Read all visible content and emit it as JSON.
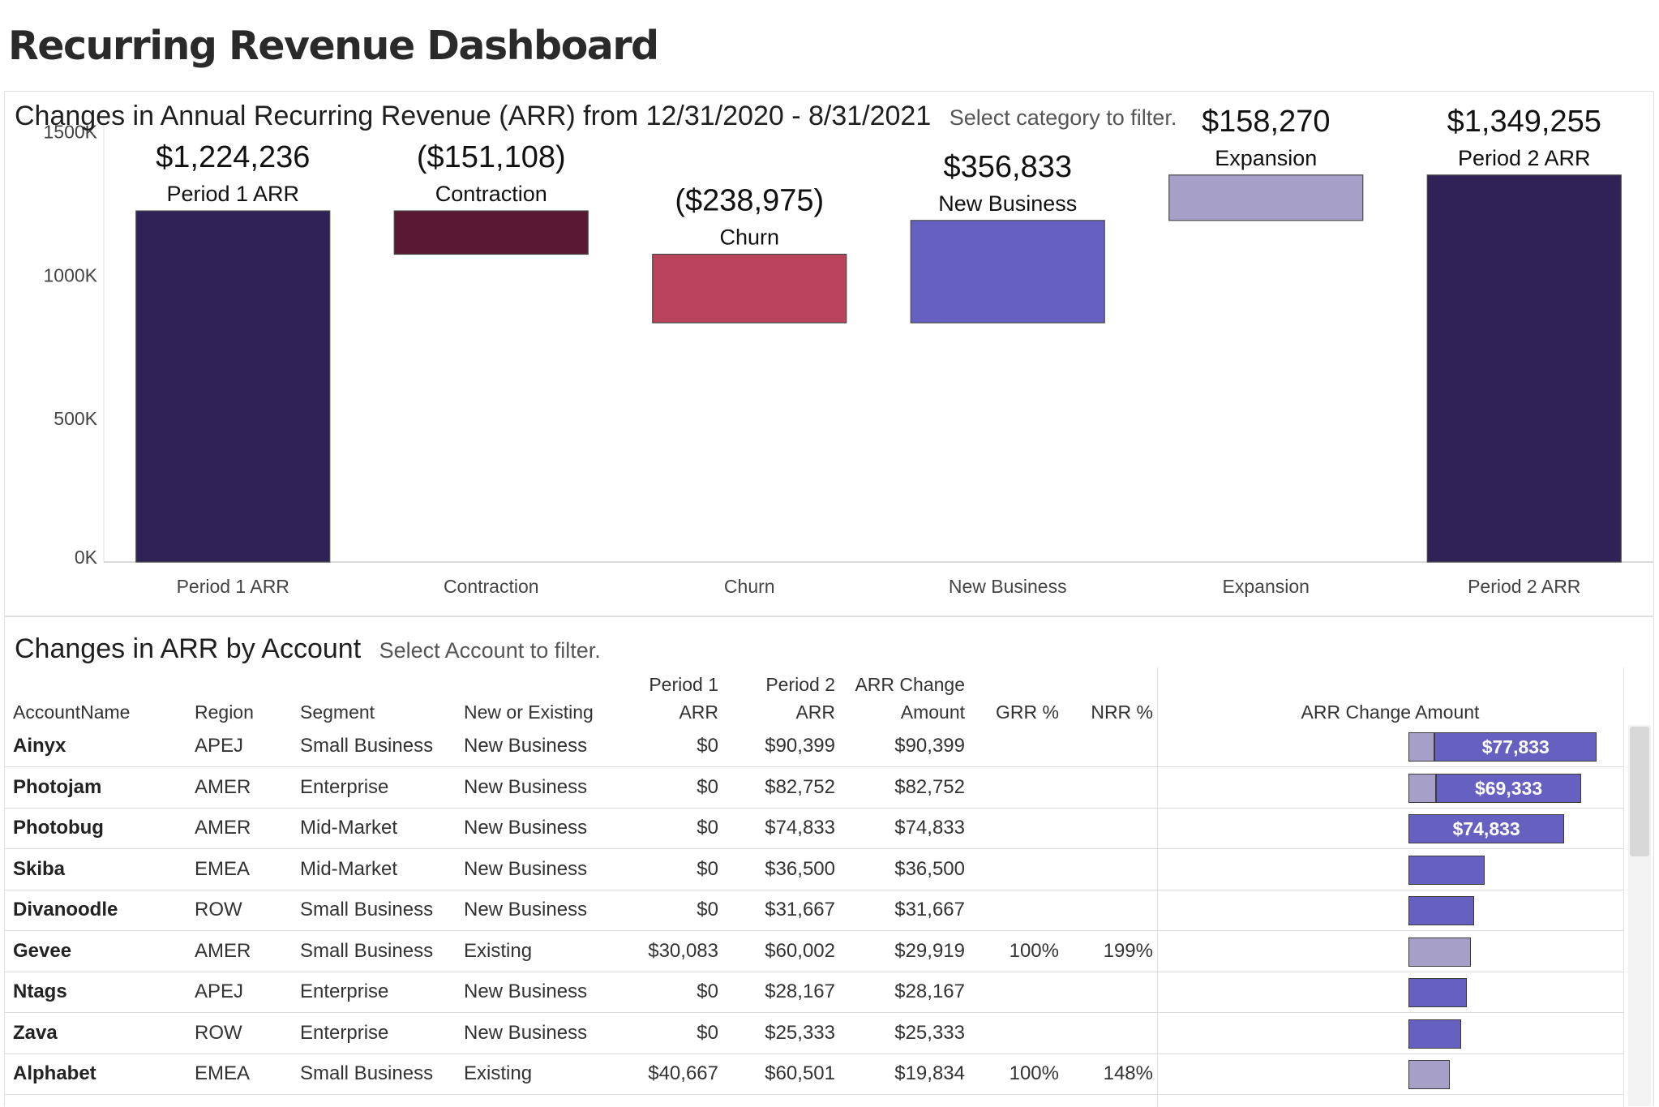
{
  "dashboard": {
    "title": "Recurring Revenue Dashboard"
  },
  "waterfall": {
    "title": "Changes in Annual Recurring Revenue (ARR) from 12/31/2020 - 8/31/2021",
    "hint": "Select category to filter."
  },
  "chart_data": {
    "type": "bar",
    "subtype": "waterfall",
    "categories": [
      "Period 1 ARR",
      "Contraction",
      "Churn",
      "New Business",
      "Expansion",
      "Period 2 ARR"
    ],
    "values": [
      1224236,
      -151108,
      -238975,
      356833,
      158270,
      1349255
    ],
    "value_labels": [
      "$1,224,236",
      "($151,108)",
      "($238,975)",
      "$356,833",
      "$158,270",
      "$1,349,255"
    ],
    "bar_start": [
      0,
      1224236,
      1073128,
      834153,
      1190986,
      0
    ],
    "bar_end": [
      1224236,
      1073128,
      834153,
      1190986,
      1349256,
      1349255
    ],
    "colors": [
      "#2e2257",
      "#5a1832",
      "#b8435b",
      "#6660c0",
      "#a69fc7",
      "#2e2257"
    ],
    "ytick_labels": [
      "1500K",
      "1000K",
      "500K",
      "0K"
    ],
    "yticks": [
      1500000,
      1000000,
      500000,
      0
    ],
    "ylim": [
      0,
      1640000
    ],
    "title": "Changes in Annual Recurring Revenue (ARR) from 12/31/2020 - 8/31/2021",
    "xlabel": "",
    "ylabel": "",
    "grid": false,
    "legend": "none"
  },
  "accounts": {
    "title": "Changes in ARR by Account",
    "hint": "Select Account to filter.",
    "headers": {
      "name": "AccountName",
      "region": "Region",
      "segment": "Segment",
      "new_existing": "New or Existing",
      "p1_line1": "Period 1",
      "p1_line2": "ARR",
      "p2_line1": "Period 2",
      "p2_line2": "ARR",
      "chg_line1": "ARR Change",
      "chg_line2": "Amount",
      "grr": "GRR %",
      "nrr": "NRR %",
      "bar": "ARR Change Amount"
    },
    "bar_colors": {
      "new": "#6660c0",
      "existing": "#a69fc7",
      "border": "#3a3a3a"
    },
    "rows": [
      {
        "name": "Ainyx",
        "region": "APEJ",
        "segment": "Small Business",
        "type": "New Business",
        "p1": "$0",
        "p2": "$90,399",
        "chg": "$90,399",
        "grr": "",
        "nrr": "",
        "grey_val": 12566,
        "blue_val": 77833,
        "bar_label": "$77,833"
      },
      {
        "name": "Photojam",
        "region": "AMER",
        "segment": "Enterprise",
        "type": "New Business",
        "p1": "$0",
        "p2": "$82,752",
        "chg": "$82,752",
        "grr": "",
        "nrr": "",
        "grey_val": 13419,
        "blue_val": 69333,
        "bar_label": "$69,333"
      },
      {
        "name": "Photobug",
        "region": "AMER",
        "segment": "Mid-Market",
        "type": "New Business",
        "p1": "$0",
        "p2": "$74,833",
        "chg": "$74,833",
        "grr": "",
        "nrr": "",
        "grey_val": 0,
        "blue_val": 74833,
        "bar_label": "$74,833"
      },
      {
        "name": "Skiba",
        "region": "EMEA",
        "segment": "Mid-Market",
        "type": "New Business",
        "p1": "$0",
        "p2": "$36,500",
        "chg": "$36,500",
        "grr": "",
        "nrr": "",
        "grey_val": 0,
        "blue_val": 36500,
        "bar_label": ""
      },
      {
        "name": "Divanoodle",
        "region": "ROW",
        "segment": "Small Business",
        "type": "New Business",
        "p1": "$0",
        "p2": "$31,667",
        "chg": "$31,667",
        "grr": "",
        "nrr": "",
        "grey_val": 0,
        "blue_val": 31667,
        "bar_label": ""
      },
      {
        "name": "Gevee",
        "region": "AMER",
        "segment": "Small Business",
        "type": "Existing",
        "p1": "$30,083",
        "p2": "$60,002",
        "chg": "$29,919",
        "grr": "100%",
        "nrr": "199%",
        "grey_val": 29919,
        "blue_val": 0,
        "bar_label": ""
      },
      {
        "name": "Ntags",
        "region": "APEJ",
        "segment": "Enterprise",
        "type": "New Business",
        "p1": "$0",
        "p2": "$28,167",
        "chg": "$28,167",
        "grr": "",
        "nrr": "",
        "grey_val": 0,
        "blue_val": 28167,
        "bar_label": ""
      },
      {
        "name": "Zava",
        "region": "ROW",
        "segment": "Enterprise",
        "type": "New Business",
        "p1": "$0",
        "p2": "$25,333",
        "chg": "$25,333",
        "grr": "",
        "nrr": "",
        "grey_val": 0,
        "blue_val": 25333,
        "bar_label": ""
      },
      {
        "name": "Alphabet",
        "region": "EMEA",
        "segment": "Small Business",
        "type": "Existing",
        "p1": "$40,667",
        "p2": "$60,501",
        "chg": "$19,834",
        "grr": "100%",
        "nrr": "148%",
        "grey_val": 19834,
        "blue_val": 0,
        "bar_label": ""
      }
    ]
  }
}
